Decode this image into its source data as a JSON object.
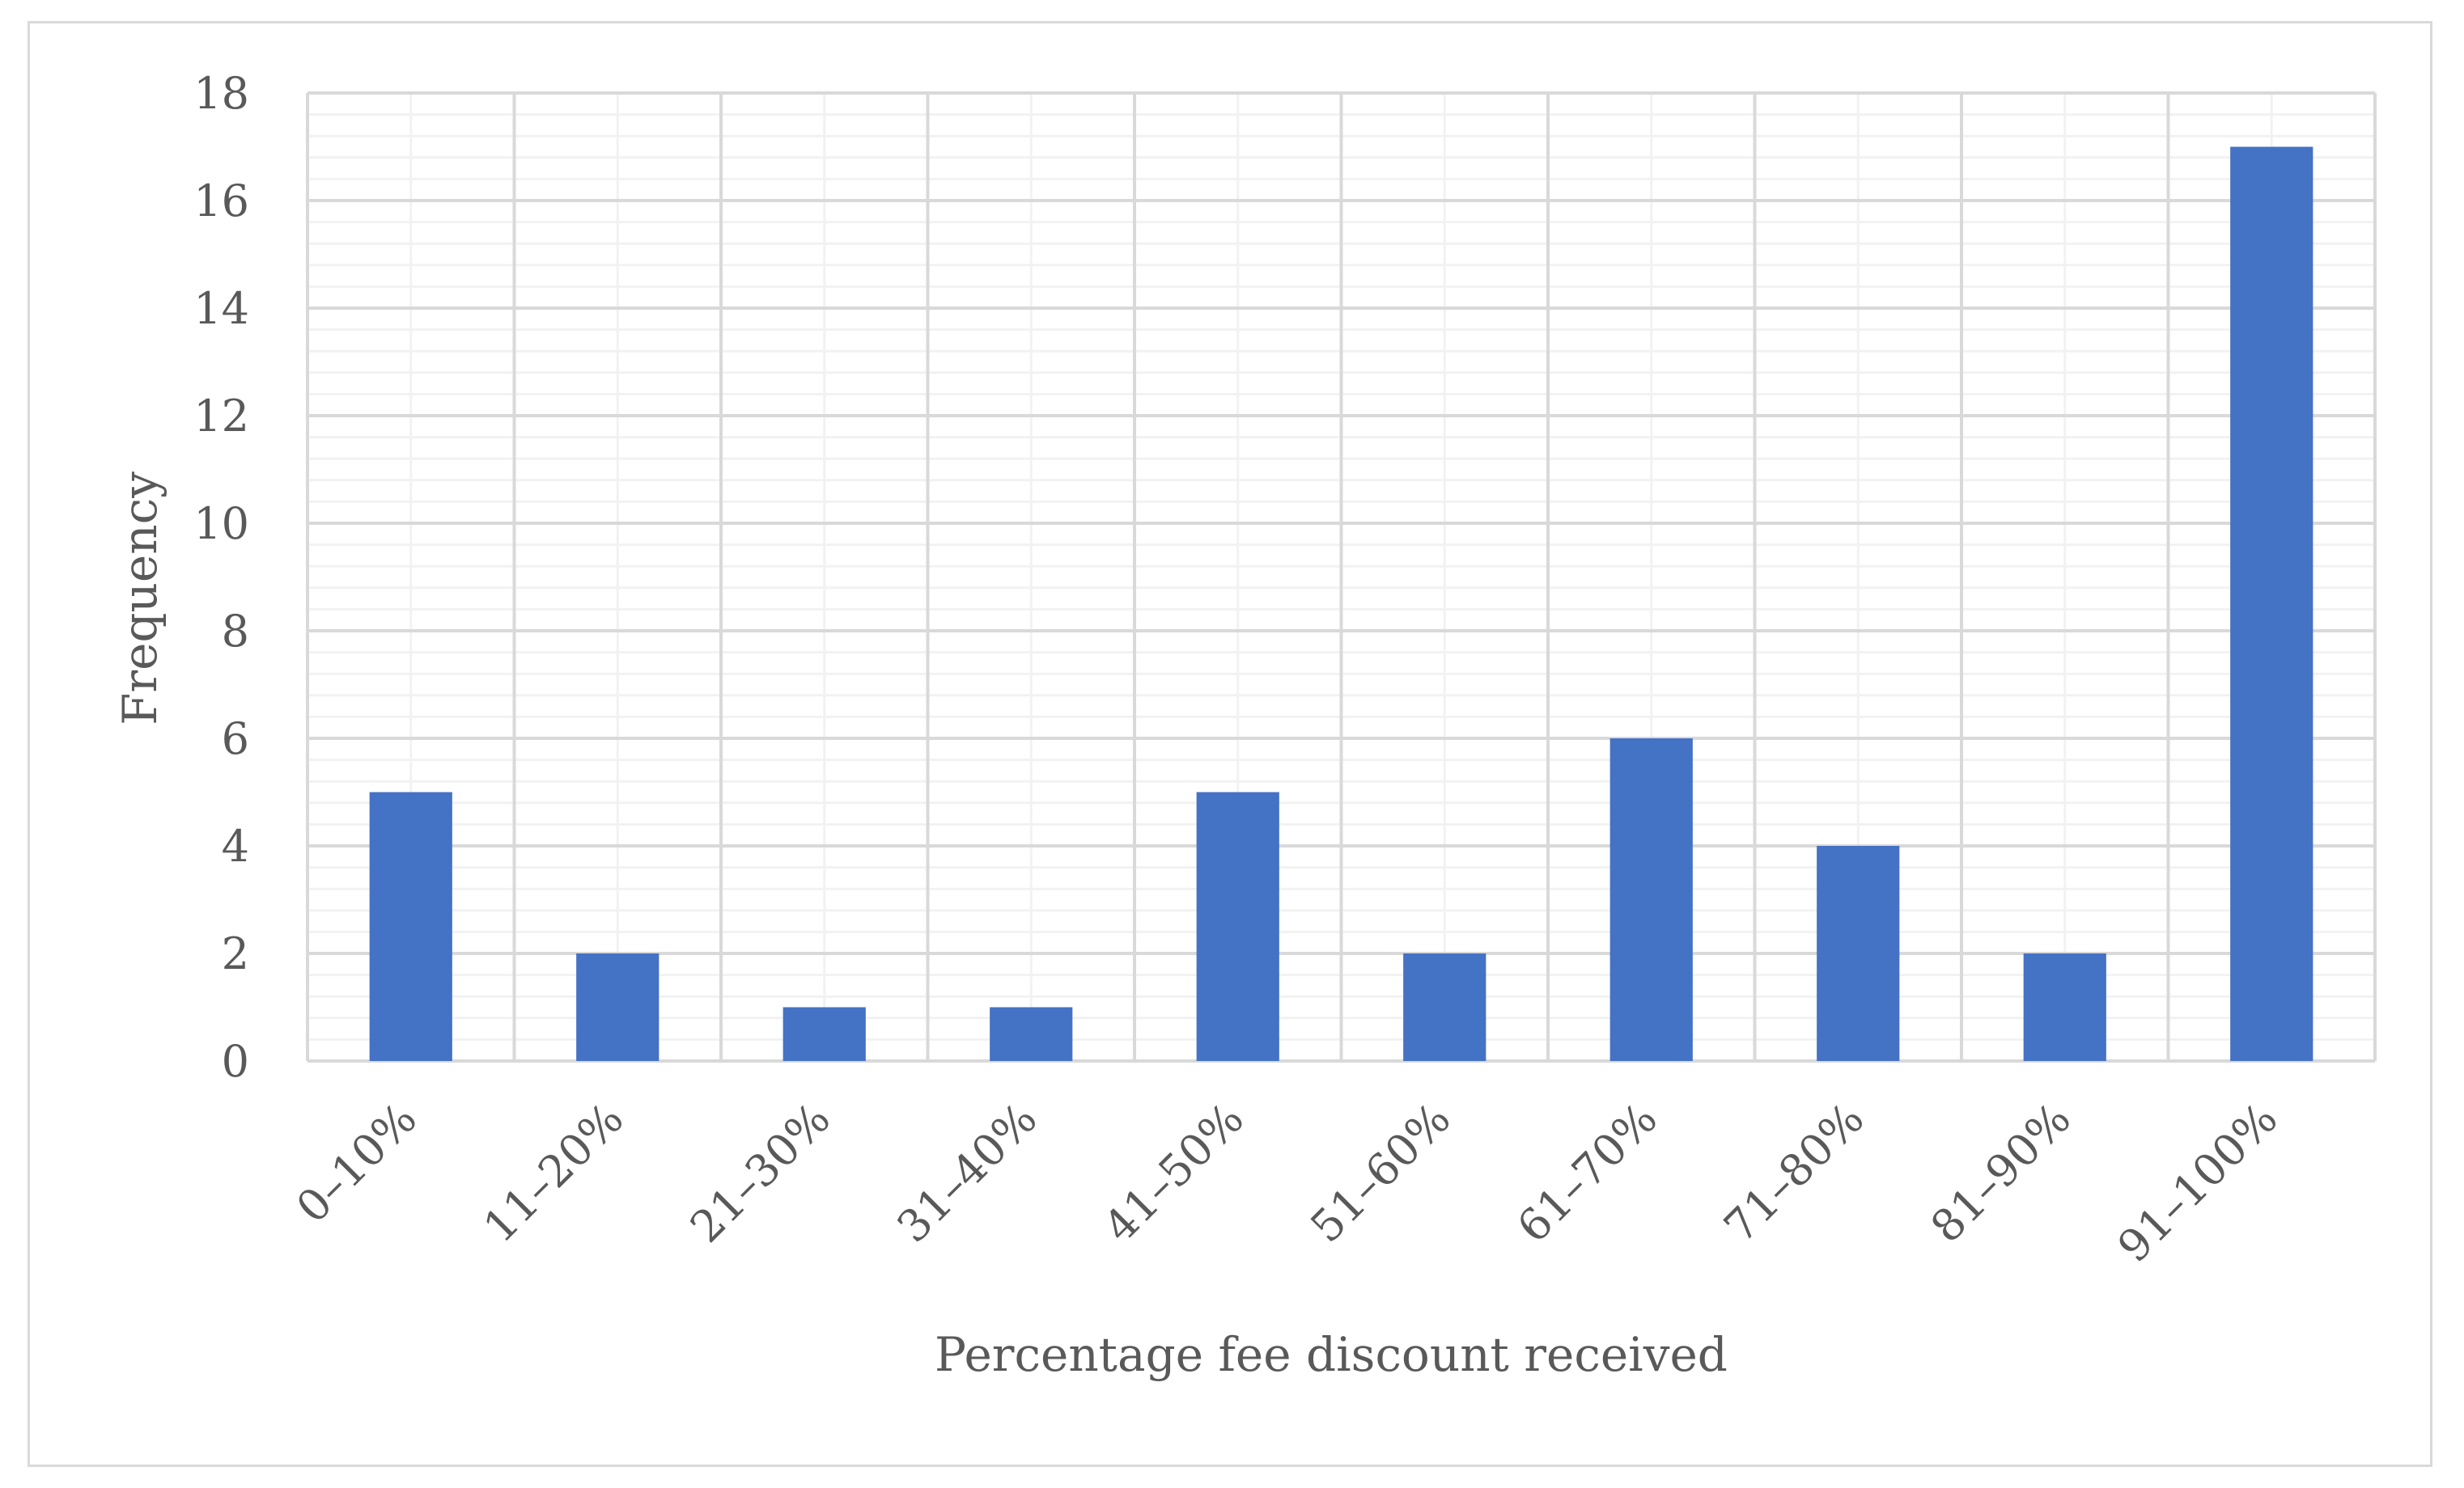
{
  "chart_data": {
    "type": "bar",
    "title": "",
    "xlabel": "Percentage fee discount received",
    "ylabel": "Frequency",
    "categories": [
      "0–10%",
      "11–20%",
      "21–30%",
      "31–40%",
      "41–50%",
      "51–60%",
      "61–70%",
      "71–80%",
      "81–90%",
      "91–100%"
    ],
    "values": [
      5,
      2,
      1,
      1,
      5,
      2,
      6,
      4,
      2,
      17
    ],
    "ylim": [
      0,
      18
    ],
    "yticks": [
      0,
      2,
      4,
      6,
      8,
      10,
      12,
      14,
      16,
      18
    ],
    "grid": "on",
    "legend": "none",
    "colors": {
      "bar": "#4472c4",
      "major_grid": "#d9d9d9",
      "minor_grid": "#f2f2f2",
      "text": "#595959"
    }
  }
}
